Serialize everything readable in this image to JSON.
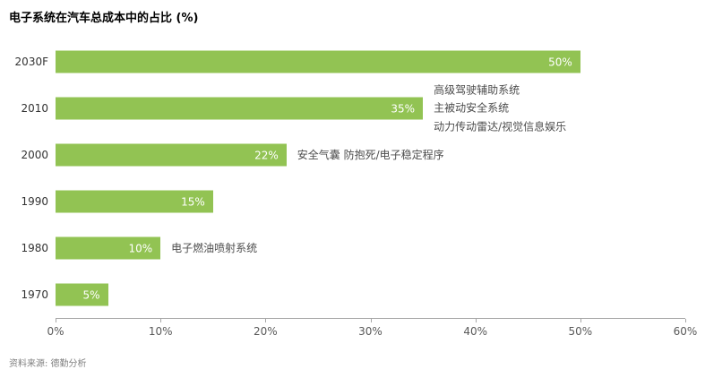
{
  "title": "电子系统在汽车总成本中的占比 (%)",
  "source": "资料来源: 德勤分析",
  "colors": {
    "bar": "#92C353",
    "axis_line": "#a6a6a6",
    "axis_text": "#595959",
    "annotation_text": "#4d4d4d"
  },
  "chart_data": {
    "type": "bar",
    "orientation": "horizontal",
    "title": "电子系统在汽车总成本中的占比 (%)",
    "categories": [
      "2030F",
      "2010",
      "2000",
      "1990",
      "1980",
      "1970"
    ],
    "values": [
      50,
      35,
      22,
      15,
      10,
      5
    ],
    "value_labels": [
      "50%",
      "35%",
      "22%",
      "15%",
      "10%",
      "5%"
    ],
    "x_ticks": [
      "0%",
      "10%",
      "20%",
      "30%",
      "40%",
      "50%",
      "60%"
    ],
    "xlim": [
      0,
      60
    ],
    "grid": false,
    "legend": false,
    "annotations": [
      {
        "category": "2010",
        "lines": [
          "高级驾驶辅助系统",
          "主被动安全系统",
          "动力传动雷达/视觉信息娱乐"
        ]
      },
      {
        "category": "2000",
        "lines": [
          "安全气囊 防抱死/电子稳定程序"
        ]
      },
      {
        "category": "1980",
        "lines": [
          "电子燃油喷射系统"
        ]
      }
    ]
  }
}
